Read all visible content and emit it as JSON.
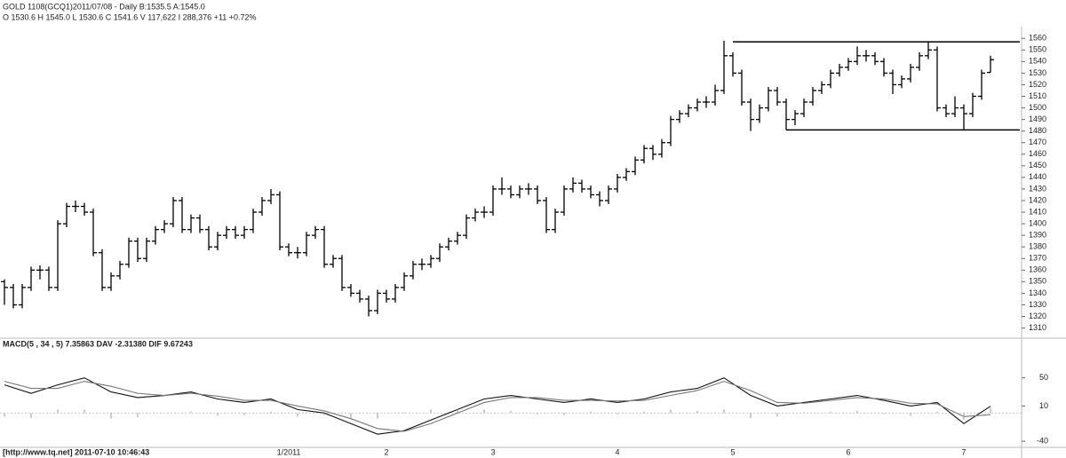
{
  "header": {
    "line1": "GOLD 1108(GCQ1)2011/07/08  - Daily B:1535.5 A:1545.0",
    "line2": "O 1530.6 H 1545.0 L 1530.6 C 1541.6 V 117,622 I 288,376 +11 +0.72%"
  },
  "footer": "[http://www.tq.net] 2011-07-10 10:46:43",
  "chart_data": [
    {
      "type": "ohlc",
      "color": "#000000",
      "categories": [
        null,
        null,
        null,
        null,
        null,
        null,
        null,
        null,
        null,
        null,
        null,
        null,
        null,
        null,
        null,
        null,
        null,
        null,
        null,
        null,
        null,
        null,
        null,
        null,
        null,
        null,
        null,
        null,
        null,
        null,
        null,
        null,
        "1/2011",
        null,
        null,
        null,
        null,
        null,
        null,
        null,
        null,
        null,
        null,
        "2",
        null,
        null,
        null,
        null,
        null,
        null,
        null,
        null,
        null,
        null,
        null,
        "3",
        null,
        null,
        null,
        null,
        null,
        null,
        null,
        null,
        null,
        null,
        null,
        null,
        null,
        "4",
        null,
        null,
        null,
        null,
        null,
        null,
        null,
        null,
        null,
        null,
        null,
        null,
        "5",
        null,
        null,
        null,
        null,
        null,
        null,
        null,
        null,
        null,
        null,
        null,
        null,
        "6",
        null,
        null,
        null,
        null,
        null,
        null,
        null,
        null,
        null,
        null,
        null,
        null,
        "7",
        null,
        null,
        null
      ],
      "ohlc": [
        [
          1350,
          1352,
          1330,
          1345
        ],
        [
          1345,
          1348,
          1327,
          1330
        ],
        [
          1330,
          1348,
          1327,
          1345
        ],
        [
          1345,
          1363,
          1342,
          1360
        ],
        [
          1360,
          1364,
          1352,
          1360
        ],
        [
          1360,
          1363,
          1342,
          1345
        ],
        [
          1345,
          1403,
          1342,
          1400
        ],
        [
          1400,
          1418,
          1397,
          1415
        ],
        [
          1415,
          1420,
          1410,
          1415
        ],
        [
          1415,
          1418,
          1407,
          1410
        ],
        [
          1410,
          1413,
          1372,
          1375
        ],
        [
          1375,
          1378,
          1342,
          1345
        ],
        [
          1345,
          1358,
          1342,
          1355
        ],
        [
          1355,
          1368,
          1352,
          1365
        ],
        [
          1365,
          1388,
          1362,
          1385
        ],
        [
          1385,
          1388,
          1367,
          1370
        ],
        [
          1370,
          1388,
          1367,
          1385
        ],
        [
          1385,
          1398,
          1382,
          1395
        ],
        [
          1395,
          1403,
          1392,
          1400
        ],
        [
          1400,
          1423,
          1397,
          1420
        ],
        [
          1420,
          1423,
          1392,
          1395
        ],
        [
          1395,
          1408,
          1392,
          1405
        ],
        [
          1405,
          1408,
          1392,
          1395
        ],
        [
          1395,
          1398,
          1377,
          1380
        ],
        [
          1380,
          1393,
          1377,
          1390
        ],
        [
          1390,
          1398,
          1387,
          1395
        ],
        [
          1395,
          1398,
          1387,
          1390
        ],
        [
          1390,
          1398,
          1387,
          1395
        ],
        [
          1395,
          1413,
          1392,
          1410
        ],
        [
          1410,
          1423,
          1407,
          1420
        ],
        [
          1420,
          1430,
          1417,
          1425
        ],
        [
          1425,
          1428,
          1377,
          1380
        ],
        [
          1380,
          1383,
          1372,
          1375
        ],
        [
          1375,
          1380,
          1370,
          1375
        ],
        [
          1375,
          1393,
          1372,
          1390
        ],
        [
          1390,
          1398,
          1387,
          1395
        ],
        [
          1395,
          1398,
          1362,
          1365
        ],
        [
          1365,
          1373,
          1362,
          1370
        ],
        [
          1370,
          1373,
          1342,
          1345
        ],
        [
          1345,
          1348,
          1337,
          1340
        ],
        [
          1340,
          1343,
          1332,
          1335
        ],
        [
          1335,
          1338,
          1320,
          1325
        ],
        [
          1325,
          1343,
          1322,
          1340
        ],
        [
          1340,
          1343,
          1332,
          1335
        ],
        [
          1335,
          1348,
          1332,
          1345
        ],
        [
          1345,
          1358,
          1342,
          1355
        ],
        [
          1355,
          1368,
          1352,
          1365
        ],
        [
          1365,
          1370,
          1360,
          1365
        ],
        [
          1365,
          1373,
          1362,
          1370
        ],
        [
          1370,
          1383,
          1367,
          1380
        ],
        [
          1380,
          1388,
          1377,
          1385
        ],
        [
          1385,
          1393,
          1382,
          1390
        ],
        [
          1390,
          1408,
          1387,
          1405
        ],
        [
          1405,
          1413,
          1402,
          1410
        ],
        [
          1410,
          1415,
          1405,
          1410
        ],
        [
          1410,
          1433,
          1407,
          1430
        ],
        [
          1430,
          1440,
          1425,
          1430
        ],
        [
          1430,
          1433,
          1422,
          1425
        ],
        [
          1425,
          1433,
          1422,
          1430
        ],
        [
          1430,
          1435,
          1425,
          1430
        ],
        [
          1430,
          1433,
          1417,
          1420
        ],
        [
          1420,
          1423,
          1392,
          1395
        ],
        [
          1395,
          1413,
          1392,
          1410
        ],
        [
          1410,
          1433,
          1407,
          1430
        ],
        [
          1430,
          1440,
          1427,
          1435
        ],
        [
          1435,
          1438,
          1427,
          1430
        ],
        [
          1430,
          1433,
          1422,
          1425
        ],
        [
          1425,
          1428,
          1415,
          1420
        ],
        [
          1420,
          1433,
          1417,
          1430
        ],
        [
          1430,
          1443,
          1427,
          1440
        ],
        [
          1440,
          1448,
          1437,
          1445
        ],
        [
          1445,
          1458,
          1442,
          1455
        ],
        [
          1455,
          1468,
          1452,
          1465
        ],
        [
          1465,
          1468,
          1455,
          1460
        ],
        [
          1460,
          1473,
          1457,
          1470
        ],
        [
          1470,
          1493,
          1467,
          1490
        ],
        [
          1490,
          1498,
          1487,
          1495
        ],
        [
          1495,
          1503,
          1492,
          1500
        ],
        [
          1500,
          1508,
          1497,
          1505
        ],
        [
          1505,
          1510,
          1500,
          1505
        ],
        [
          1505,
          1520,
          1502,
          1515
        ],
        [
          1515,
          1558,
          1512,
          1545
        ],
        [
          1545,
          1548,
          1527,
          1530
        ],
        [
          1530,
          1533,
          1502,
          1505
        ],
        [
          1505,
          1508,
          1480,
          1490
        ],
        [
          1490,
          1503,
          1487,
          1500
        ],
        [
          1500,
          1518,
          1497,
          1515
        ],
        [
          1515,
          1518,
          1502,
          1505
        ],
        [
          1505,
          1508,
          1481,
          1490
        ],
        [
          1490,
          1498,
          1485,
          1495
        ],
        [
          1495,
          1508,
          1492,
          1505
        ],
        [
          1505,
          1518,
          1502,
          1515
        ],
        [
          1515,
          1523,
          1512,
          1520
        ],
        [
          1520,
          1533,
          1517,
          1530
        ],
        [
          1530,
          1538,
          1527,
          1535
        ],
        [
          1535,
          1543,
          1532,
          1540
        ],
        [
          1540,
          1553,
          1537,
          1545
        ],
        [
          1545,
          1550,
          1540,
          1545
        ],
        [
          1545,
          1548,
          1537,
          1540
        ],
        [
          1540,
          1543,
          1527,
          1530
        ],
        [
          1530,
          1533,
          1512,
          1520
        ],
        [
          1520,
          1528,
          1517,
          1525
        ],
        [
          1525,
          1538,
          1522,
          1535
        ],
        [
          1535,
          1548,
          1532,
          1545
        ],
        [
          1545,
          1557,
          1542,
          1550
        ],
        [
          1550,
          1553,
          1497,
          1500
        ],
        [
          1500,
          1503,
          1492,
          1495
        ],
        [
          1495,
          1510,
          1492,
          1500
        ],
        [
          1500,
          1503,
          1481,
          1495
        ],
        [
          1495,
          1513,
          1492,
          1510
        ],
        [
          1510,
          1533,
          1507,
          1530
        ],
        [
          1530.6,
          1545,
          1530.6,
          1541.6
        ]
      ],
      "levels": [
        1557,
        1481
      ],
      "ylim": [
        1302,
        1564
      ],
      "yticks": [
        1310,
        1320,
        1330,
        1340,
        1350,
        1360,
        1370,
        1380,
        1390,
        1400,
        1410,
        1420,
        1430,
        1440,
        1450,
        1460,
        1470,
        1480,
        1490,
        1500,
        1510,
        1520,
        1530,
        1540,
        1550,
        1560
      ]
    },
    {
      "type": "macd",
      "title": "MACD(5 , 34 , 5) 7.35863 DAV -2.31380 DIF 9.67243",
      "x": [
        0,
        3,
        6,
        9,
        12,
        15,
        18,
        21,
        24,
        27,
        30,
        33,
        36,
        39,
        42,
        45,
        48,
        51,
        54,
        57,
        60,
        63,
        66,
        69,
        72,
        75,
        78,
        81,
        84,
        87,
        90,
        93,
        96,
        99,
        102,
        105,
        108,
        111
      ],
      "series": [
        {
          "name": "DIF",
          "color": "#111111",
          "values": [
            40,
            28,
            40,
            50,
            30,
            22,
            25,
            30,
            20,
            15,
            20,
            5,
            0,
            -15,
            -30,
            -25,
            -10,
            5,
            20,
            25,
            20,
            15,
            20,
            15,
            20,
            30,
            35,
            50,
            25,
            10,
            15,
            20,
            25,
            18,
            10,
            15,
            -15,
            9.67
          ]
        },
        {
          "name": "DAV",
          "color": "#777777",
          "values": [
            45,
            35,
            35,
            45,
            38,
            28,
            25,
            28,
            24,
            18,
            18,
            10,
            3,
            -8,
            -22,
            -26,
            -15,
            0,
            15,
            22,
            22,
            18,
            18,
            17,
            18,
            25,
            32,
            45,
            32,
            15,
            14,
            18,
            22,
            20,
            14,
            13,
            -5,
            -2.31
          ]
        },
        {
          "name": "MACD",
          "color": "#999999",
          "values": [
            -5,
            -7,
            5,
            5,
            -8,
            -6,
            0,
            2,
            -4,
            -3,
            2,
            -5,
            -3,
            -7,
            -8,
            1,
            5,
            5,
            5,
            3,
            -2,
            -3,
            2,
            -2,
            2,
            5,
            3,
            5,
            -7,
            -5,
            1,
            2,
            3,
            -2,
            -4,
            2,
            -10,
            7.36
          ]
        }
      ],
      "ylim": [
        -50,
        95
      ],
      "yticks": [
        50,
        10,
        -40
      ]
    }
  ]
}
